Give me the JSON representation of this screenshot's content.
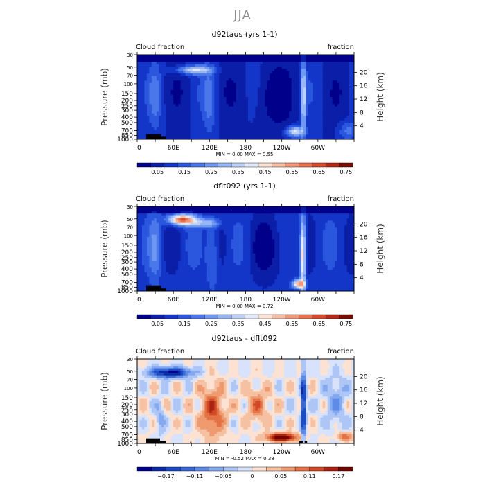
{
  "page": {
    "title": "JJA"
  },
  "colors": {
    "fraction_scale": [
      "#00008b",
      "#0a1ea8",
      "#1436c8",
      "#2a57de",
      "#4a78ea",
      "#6e98f2",
      "#97b6f6",
      "#bdd0f8",
      "#e2e9fa",
      "#fbe2d2",
      "#f7bea4",
      "#f29878",
      "#e8724e",
      "#d64c2d",
      "#b42a16",
      "#7a0c04"
    ],
    "difference_scale": [
      "#00008b",
      "#0b2aa5",
      "#1a4cc3",
      "#3a6ad8",
      "#5e8be6",
      "#84a9f0",
      "#aec6f6",
      "#d8e3fb",
      "#fbe2d2",
      "#f6c1a2",
      "#f09a70",
      "#e57245",
      "#d14a25",
      "#a92412",
      "#730800"
    ],
    "land": "#000000"
  },
  "panels": [
    {
      "title": "d92taus (yrs 1-1)",
      "left_label": "Cloud fraction",
      "right_label": "fraction",
      "minmax": "MIN =     0.00   MAX =     0.55",
      "colorbar_labels": [
        "0.05",
        "0.15",
        "0.25",
        "0.35",
        "0.45",
        "0.55",
        "0.65",
        "0.75"
      ]
    },
    {
      "title": "dflt092 (yrs 1-1)",
      "left_label": "Cloud fraction",
      "right_label": "fraction",
      "minmax": "MIN =     0.00   MAX =     0.72",
      "colorbar_labels": [
        "0.05",
        "0.15",
        "0.25",
        "0.35",
        "0.45",
        "0.55",
        "0.65",
        "0.75"
      ]
    },
    {
      "title": "d92taus - dflt092",
      "left_label": "Cloud fraction",
      "right_label": "fraction",
      "minmax": "MIN =    -0.52   MAX =     0.38",
      "colorbar_labels": [
        "−0.17",
        "−0.11",
        "−0.05",
        "0",
        "0.05",
        "0.11",
        "0.17"
      ]
    }
  ],
  "chart_data": [
    {
      "type": "heatmap",
      "title": "d92taus (yrs 1-1)",
      "xlabel": "",
      "ylabel": "Pressure (mb)",
      "y2label": "Height (km)",
      "x_ticks": [
        "0",
        "60E",
        "120E",
        "180",
        "120W",
        "60W"
      ],
      "y_ticks": [
        "1000",
        "850",
        "700",
        "500",
        "400",
        "300",
        "250",
        "200",
        "150",
        "100",
        "70",
        "50",
        "30"
      ],
      "y2_ticks": [
        "4",
        "8",
        "12",
        "16",
        "20"
      ],
      "min": 0.0,
      "max": 0.55,
      "levels": [
        0.05,
        0.1,
        0.15,
        0.2,
        0.25,
        0.3,
        0.35,
        0.4,
        0.45,
        0.5,
        0.55,
        0.6,
        0.65,
        0.7,
        0.75
      ],
      "features": [
        {
          "desc": "upper cloud band 60E-120E near 200 mb",
          "value": 0.4
        },
        {
          "desc": "low cloud deck 120W-90W near 900 mb",
          "value": 0.45
        },
        {
          "desc": "vertical band near 90W",
          "value": 0.35
        }
      ]
    },
    {
      "type": "heatmap",
      "title": "dflt092 (yrs 1-1)",
      "xlabel": "",
      "ylabel": "Pressure (mb)",
      "y2label": "Height (km)",
      "x_ticks": [
        "0",
        "60E",
        "120E",
        "180",
        "120W",
        "60W"
      ],
      "y_ticks": [
        "1000",
        "850",
        "700",
        "500",
        "400",
        "300",
        "250",
        "200",
        "150",
        "100",
        "70",
        "50",
        "30"
      ],
      "y2_ticks": [
        "4",
        "8",
        "12",
        "16",
        "20"
      ],
      "min": 0.0,
      "max": 0.72,
      "levels": [
        0.05,
        0.1,
        0.15,
        0.2,
        0.25,
        0.3,
        0.35,
        0.4,
        0.45,
        0.5,
        0.55,
        0.6,
        0.65,
        0.7,
        0.75
      ],
      "features": [
        {
          "desc": "upper cloud maximum 60E-120E near 200 mb",
          "value": 0.7
        },
        {
          "desc": "vertical band near 90W",
          "value": 0.45
        },
        {
          "desc": "low cloud near 100W 900 mb",
          "value": 0.55
        }
      ]
    },
    {
      "type": "heatmap",
      "title": "d92taus - dflt092",
      "xlabel": "",
      "ylabel": "Pressure (mb)",
      "y2label": "Height (km)",
      "x_ticks": [
        "0",
        "60E",
        "120E",
        "180",
        "120W",
        "60W"
      ],
      "y_ticks": [
        "1000",
        "850",
        "700",
        "500",
        "400",
        "300",
        "250",
        "200",
        "150",
        "100",
        "70",
        "50",
        "30"
      ],
      "y2_ticks": [
        "4",
        "8",
        "12",
        "16",
        "20"
      ],
      "min": -0.52,
      "max": 0.38,
      "levels": [
        -0.2,
        -0.17,
        -0.14,
        -0.11,
        -0.08,
        -0.05,
        -0.02,
        0,
        0.02,
        0.05,
        0.08,
        0.11,
        0.14,
        0.17,
        0.2
      ],
      "features": [
        {
          "desc": "negative upper-level band 0-90E near 200 mb",
          "value": -0.2
        },
        {
          "desc": "positive column 100E-150E at 400-850 mb",
          "value": 0.11
        },
        {
          "desc": "positive low cloud 160W-100W near 900 mb",
          "value": 0.2
        },
        {
          "desc": "negative vertical band near 80W",
          "value": -0.2
        }
      ]
    }
  ]
}
